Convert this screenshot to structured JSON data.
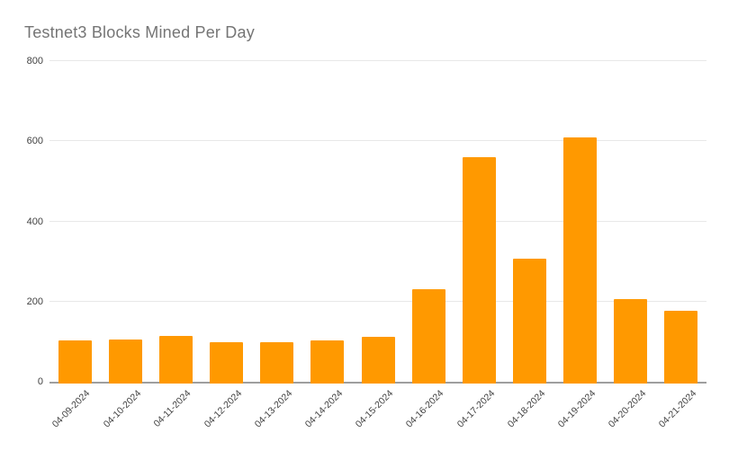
{
  "chart_data": {
    "type": "bar",
    "title": "Testnet3 Blocks Mined Per Day",
    "categories": [
      "04-09-2024",
      "04-10-2024",
      "04-11-2024",
      "04-12-2024",
      "04-13-2024",
      "04-14-2024",
      "04-15-2024",
      "04-16-2024",
      "04-17-2024",
      "04-18-2024",
      "04-19-2024",
      "04-20-2024",
      "04-21-2024"
    ],
    "values": [
      104,
      106,
      115,
      98,
      99,
      104,
      112,
      230,
      560,
      307,
      610,
      206,
      178
    ],
    "xlabel": "",
    "ylabel": "",
    "ylim": [
      0,
      800
    ],
    "yticks": [
      0,
      200,
      400,
      600,
      800
    ],
    "grid": "horizontal",
    "legend": "none",
    "colors": {
      "bar": "#ff9900",
      "title": "#757575",
      "tick_labels": "#424242",
      "gridline": "#e8e8e8",
      "baseline": "#9e9e9e",
      "background": "#ffffff"
    }
  }
}
